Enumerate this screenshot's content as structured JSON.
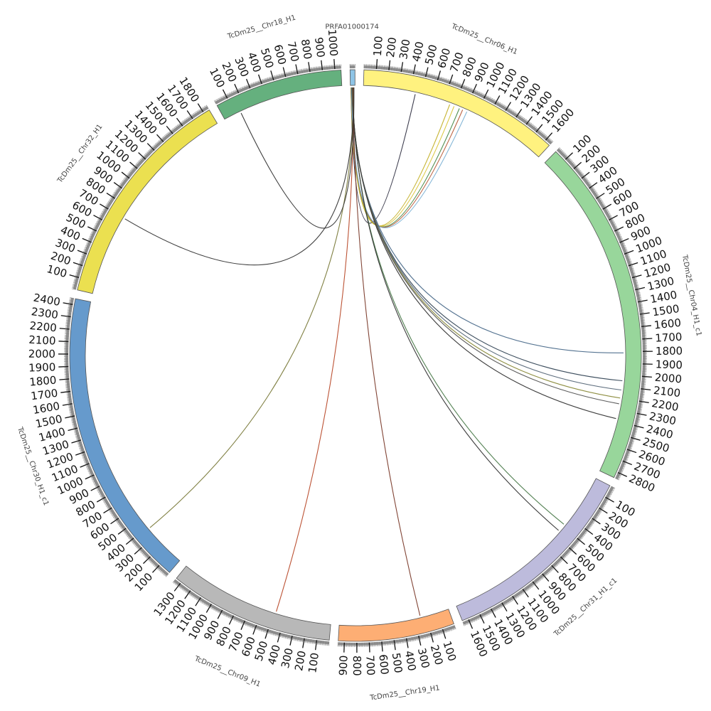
{
  "chart_data": {
    "type": "circos",
    "tick_step": 100,
    "segments": [
      {
        "name": "PRFA01000174",
        "length": 40,
        "color": "#8EC4E6",
        "label_every": 0
      },
      {
        "name": "TcDm25__Chr06_H1",
        "length": 1650,
        "color": "#FFF27F",
        "label_every": 100
      },
      {
        "name": "TcDm25__Chr04_H1_c1",
        "length": 2850,
        "color": "#98D69B",
        "label_every": 100
      },
      {
        "name": "TcDm25__Chr31_H1_c1",
        "length": 1650,
        "color": "#BDBBDC",
        "label_every": 100
      },
      {
        "name": "TcDm25__Chr19_H1",
        "length": 950,
        "color": "#FDAE74",
        "label_every": 100
      },
      {
        "name": "TcDm25__Chr09_H1",
        "length": 1350,
        "color": "#B8B8B8",
        "label_every": 100
      },
      {
        "name": "TcDm25__Chr30_H1_c1",
        "length": 2450,
        "color": "#669ACC",
        "label_every": 100
      },
      {
        "name": "TcDm25__Chr32_H1",
        "length": 1850,
        "color": "#EBE050",
        "label_every": 100
      },
      {
        "name": "TcDm25__Chr18_H1",
        "length": 1050,
        "color": "#65B07E",
        "label_every": 100
      }
    ],
    "links": [
      {
        "from_pos": 5,
        "to": "TcDm25__Chr06_H1",
        "pos": 450,
        "color": "#333344"
      },
      {
        "from_pos": 6,
        "to": "TcDm25__Chr06_H1",
        "pos": 760,
        "color": "#C4B12A"
      },
      {
        "from_pos": 7,
        "to": "TcDm25__Chr06_H1",
        "pos": 800,
        "color": "#D9C53A"
      },
      {
        "from_pos": 8,
        "to": "TcDm25__Chr06_H1",
        "pos": 850,
        "color": "#4A8A4A"
      },
      {
        "from_pos": 9,
        "to": "TcDm25__Chr06_H1",
        "pos": 880,
        "color": "#B85C3A"
      },
      {
        "from_pos": 10,
        "to": "TcDm25__Chr06_H1",
        "pos": 920,
        "color": "#7FB3D5"
      },
      {
        "from_pos": 12,
        "to": "TcDm25__Chr04_H1_c1",
        "pos": 1810,
        "color": "#4A6A8A"
      },
      {
        "from_pos": 14,
        "to": "TcDm25__Chr04_H1_c1",
        "pos": 2050,
        "color": "#334455"
      },
      {
        "from_pos": 15,
        "to": "TcDm25__Chr04_H1_c1",
        "pos": 2130,
        "color": "#556677"
      },
      {
        "from_pos": 16,
        "to": "TcDm25__Chr04_H1_c1",
        "pos": 2200,
        "color": "#8A8A3A"
      },
      {
        "from_pos": 17,
        "to": "TcDm25__Chr04_H1_c1",
        "pos": 2250,
        "color": "#555555"
      },
      {
        "from_pos": 18,
        "to": "TcDm25__Chr04_H1_c1",
        "pos": 2380,
        "color": "#333333"
      },
      {
        "from_pos": 20,
        "to": "TcDm25__Chr31_H1_c1",
        "pos": 480,
        "color": "#4A7A4A"
      },
      {
        "from_pos": 21,
        "to": "TcDm25__Chr31_H1_c1",
        "pos": 550,
        "color": "#333333"
      },
      {
        "from_pos": 23,
        "to": "TcDm25__Chr19_H1",
        "pos": 250,
        "color": "#7A3A2A"
      },
      {
        "from_pos": 25,
        "to": "TcDm25__Chr09_H1",
        "pos": 480,
        "color": "#B84A2A"
      },
      {
        "from_pos": 27,
        "to": "TcDm25__Chr30_H1_c1",
        "pos": 380,
        "color": "#7A7A3A"
      },
      {
        "from_pos": 29,
        "to": "TcDm25__Chr32_H1",
        "pos": 700,
        "color": "#333333"
      },
      {
        "from_pos": 31,
        "to": "TcDm25__Chr18_H1",
        "pos": 150,
        "color": "#333333"
      }
    ]
  }
}
